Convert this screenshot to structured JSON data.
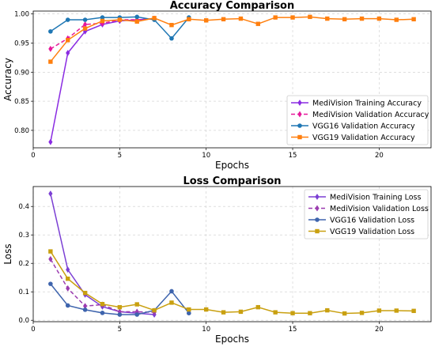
{
  "chart_data": [
    {
      "type": "line",
      "title": "Accuracy Comparison",
      "xlabel": "Epochs",
      "ylabel": "Accuracy",
      "xlim": [
        0,
        23
      ],
      "ylim": [
        0.77,
        1.005
      ],
      "xticks": [
        0,
        5,
        10,
        15,
        20
      ],
      "yticks": [
        0.8,
        0.85,
        0.9,
        0.95,
        1.0
      ],
      "ytick_labels": [
        "0.80",
        "0.85",
        "0.90",
        "0.95",
        "1.00"
      ],
      "grid": true,
      "legend_position": "bottom-right",
      "series": [
        {
          "name": "MediVision Training Accuracy",
          "color": "#8a2be2",
          "marker": "diamond",
          "dash": false,
          "x": [
            1,
            2,
            3,
            4,
            5,
            6,
            7
          ],
          "y": [
            0.78,
            0.933,
            0.97,
            0.982,
            0.988,
            0.99,
            0.992
          ]
        },
        {
          "name": "MediVision Validation Accuracy",
          "color": "#e6189a",
          "marker": "diamond",
          "dash": true,
          "x": [
            1,
            2,
            3,
            4,
            5,
            6,
            7
          ],
          "y": [
            0.94,
            0.958,
            0.982,
            0.984,
            0.99,
            0.99,
            0.992
          ]
        },
        {
          "name": "VGG16 Validation Accuracy",
          "color": "#1f77b4",
          "marker": "circle",
          "dash": false,
          "x": [
            1,
            2,
            3,
            4,
            5,
            6,
            7,
            8,
            9
          ],
          "y": [
            0.97,
            0.99,
            0.99,
            0.994,
            0.994,
            0.995,
            0.99,
            0.958,
            0.994
          ]
        },
        {
          "name": "VGG19 Validation Accuracy",
          "color": "#ff7f0e",
          "marker": "square",
          "dash": false,
          "x": [
            1,
            2,
            3,
            4,
            5,
            6,
            7,
            8,
            9,
            10,
            11,
            12,
            13,
            14,
            15,
            16,
            17,
            18,
            19,
            20,
            21,
            22
          ],
          "y": [
            0.918,
            0.955,
            0.975,
            0.988,
            0.99,
            0.987,
            0.993,
            0.981,
            0.991,
            0.989,
            0.991,
            0.992,
            0.983,
            0.994,
            0.994,
            0.995,
            0.992,
            0.991,
            0.992,
            0.992,
            0.99,
            0.991
          ]
        }
      ]
    },
    {
      "type": "line",
      "title": "Loss Comparison",
      "xlabel": "Epochs",
      "ylabel": "Loss",
      "xlim": [
        0,
        23
      ],
      "ylim": [
        -0.005,
        0.47
      ],
      "xticks": [
        0,
        5,
        10,
        15,
        20
      ],
      "yticks": [
        0.0,
        0.1,
        0.2,
        0.3,
        0.4
      ],
      "ytick_labels": [
        "0.0",
        "0.1",
        "0.2",
        "0.3",
        "0.4"
      ],
      "grid": true,
      "legend_position": "top-right",
      "series": [
        {
          "name": "MediVision Training Loss",
          "color": "#7b3fd4",
          "marker": "diamond",
          "dash": false,
          "x": [
            1,
            2,
            3,
            4,
            5,
            6,
            7
          ],
          "y": [
            0.445,
            0.178,
            0.09,
            0.048,
            0.03,
            0.025,
            0.02
          ]
        },
        {
          "name": "MediVision Validation Loss",
          "color": "#9b3cb0",
          "marker": "diamond",
          "dash": true,
          "x": [
            1,
            2,
            3,
            4,
            5,
            6,
            7
          ],
          "y": [
            0.215,
            0.112,
            0.05,
            0.055,
            0.03,
            0.03,
            0.028
          ]
        },
        {
          "name": "VGG16 Validation Loss",
          "color": "#3e64ad",
          "marker": "circle",
          "dash": false,
          "x": [
            1,
            2,
            3,
            4,
            5,
            6,
            7,
            8,
            9
          ],
          "y": [
            0.128,
            0.052,
            0.037,
            0.026,
            0.02,
            0.02,
            0.035,
            0.102,
            0.025
          ]
        },
        {
          "name": "VGG19 Validation Loss",
          "color": "#c9a010",
          "marker": "square",
          "dash": false,
          "x": [
            1,
            2,
            3,
            4,
            5,
            6,
            7,
            8,
            9,
            10,
            11,
            12,
            13,
            14,
            15,
            16,
            17,
            18,
            19,
            20,
            21,
            22
          ],
          "y": [
            0.242,
            0.146,
            0.096,
            0.057,
            0.046,
            0.056,
            0.035,
            0.062,
            0.038,
            0.038,
            0.028,
            0.03,
            0.046,
            0.028,
            0.025,
            0.025,
            0.035,
            0.024,
            0.026,
            0.034,
            0.034,
            0.033
          ]
        }
      ]
    }
  ]
}
